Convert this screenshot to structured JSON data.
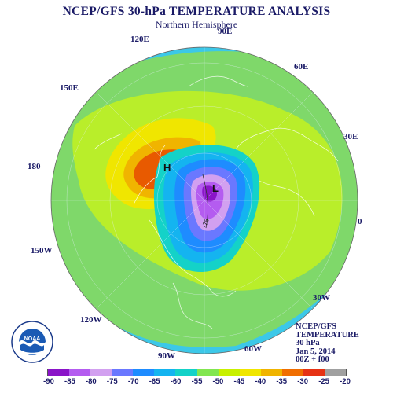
{
  "header": {
    "title": "NCEP/GFS 30-hPa TEMPERATURE ANALYSIS",
    "subtitle": "Northern Hemisphere"
  },
  "longitude_labels": [
    "90E",
    "60E",
    "30E",
    "0",
    "30W",
    "60W",
    "90W",
    "120W",
    "150W",
    "180",
    "150E",
    "120E"
  ],
  "map_markers": [
    {
      "letter": "H",
      "meaning": "high temperature center"
    },
    {
      "letter": "L",
      "meaning": "low temperature center"
    }
  ],
  "contour_label": "-78",
  "info": {
    "line1": "NCEP/GFS",
    "line2": "TEMPERATURE",
    "line3": "30 hPa",
    "line4": "Jan 5, 2014",
    "line5": "00Z + f00"
  },
  "logo": {
    "text": "NOAA",
    "icon": "noaa-logo-icon"
  },
  "colorbar": {
    "labels": [
      "-90",
      "-85",
      "-80",
      "-75",
      "-70",
      "-65",
      "-60",
      "-55",
      "-50",
      "-45",
      "-40",
      "-35",
      "-30",
      "-25",
      "-20"
    ],
    "colors": [
      "#8a14c8",
      "#b45cf0",
      "#d2a0f0",
      "#6a78ff",
      "#1e8cff",
      "#14b4f0",
      "#14d2c8",
      "#82e650",
      "#c8f000",
      "#f0e600",
      "#f0b400",
      "#f06e00",
      "#e63214",
      "#a0a0a0"
    ]
  },
  "palette": {
    "ocean_band": "#3cc8e8",
    "cold_core": "#8a14c8",
    "warm_core": "#e85a00"
  }
}
